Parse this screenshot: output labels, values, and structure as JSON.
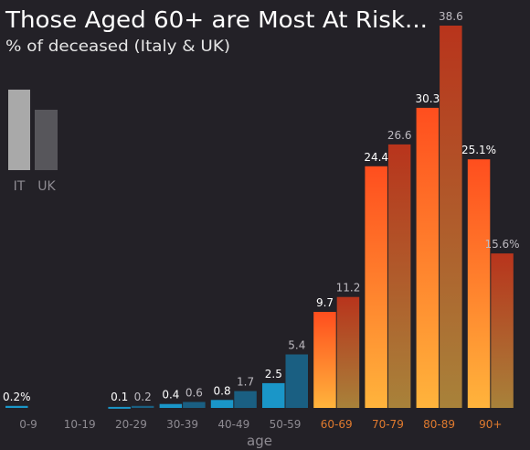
{
  "title": "Those Aged 60+ are Most At Risk...",
  "subtitle": "% of deceased (Italy & UK)",
  "legend": {
    "it_label": "IT",
    "uk_label": "UK"
  },
  "colors": {
    "background": "#232127",
    "young_it": "#1a96c8",
    "young_uk": "#1a5f82",
    "old_it_top": "#ff4e1e",
    "old_it_bottom": "#ffb43c",
    "old_uk_top": "#b8341c",
    "old_uk_bottom": "#a8823a",
    "legend_it": "#a9a9a9",
    "legend_uk": "#57565b",
    "tick_young": "#8e8b92",
    "tick_old": "#e07a2e",
    "label_it": "#ffffff",
    "label_uk": "#bdbac0"
  },
  "chart_data": {
    "type": "bar",
    "xlabel": "age",
    "ylabel": "",
    "ylim": [
      0,
      40
    ],
    "grid": false,
    "legend_position": "top-left",
    "categories": [
      "0-9",
      "10-19",
      "20-29",
      "30-39",
      "40-49",
      "50-59",
      "60-69",
      "70-79",
      "80-89",
      "90+"
    ],
    "series": [
      {
        "name": "IT",
        "values": [
          0.2,
          0,
          0.1,
          0.4,
          0.8,
          2.5,
          9.7,
          24.4,
          30.3,
          25.1
        ]
      },
      {
        "name": "UK",
        "values": [
          0,
          0,
          0.2,
          0.6,
          1.7,
          5.4,
          11.2,
          26.6,
          38.6,
          15.6
        ]
      }
    ],
    "data_labels": [
      [
        "0.2%",
        "",
        "0.1",
        "0.4",
        "0.8",
        "2.5",
        "9.7",
        "24.4",
        "30.3",
        "25.1%"
      ],
      [
        "",
        "",
        "0.2",
        "0.6",
        "1.7",
        "5.4",
        "11.2",
        "26.6",
        "38.6",
        "15.6%"
      ]
    ]
  }
}
